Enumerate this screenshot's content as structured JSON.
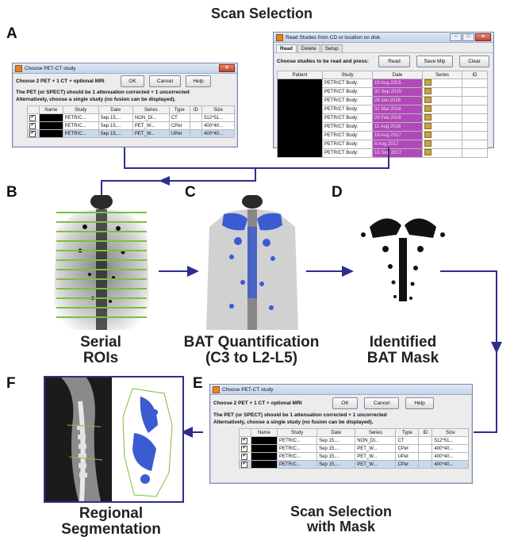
{
  "title": "Scan Selection",
  "labels": {
    "a": "A",
    "b": "B",
    "c": "C",
    "d": "D",
    "e": "E",
    "f": "F"
  },
  "captions": {
    "serial": "Serial\nROIs",
    "bat": "BAT Quantification\n(C3 to L2-L5)",
    "mask": "Identified\nBAT Mask",
    "seg": "Regional\nSegmentation",
    "scan_mask": "Scan Selection\nwith Mask"
  },
  "colors": {
    "arrow": "#2e2e8e",
    "roi": "#7ec03a",
    "bat": "#3a5bd1",
    "pink": "#b149b8"
  },
  "win_a": {
    "title": "Choose PET-CT study",
    "instruction": "Choose 2 PET + 1 CT + optional MRI",
    "ok": "OK",
    "cancel": "Cancel",
    "help": "Help",
    "line1": "The PET (or SPECT) should be 1 attenuation corrected + 1 uncorrected",
    "line2": "Alternatively, choose a single study (no fusion can be displayed).",
    "headers": [
      "Name",
      "Study",
      "Date",
      "Series",
      "Type",
      "ID",
      "Size"
    ],
    "rows": [
      {
        "study": "PETR/C...",
        "date": "Sep 15,...",
        "series": "NON_DI...",
        "type": "CT",
        "id": "",
        "size": "512*51..."
      },
      {
        "study": "PETR/C...",
        "date": "Sep 15,...",
        "series": "PET_W...",
        "type": "CPet",
        "id": "",
        "size": "400*40..."
      },
      {
        "study": "PETR/C...",
        "date": "Sep 15,...",
        "series": "PET_W...",
        "type": "UPet",
        "id": "",
        "size": "400*40..."
      }
    ]
  },
  "win_read": {
    "title": "Read Studies from CD or location on disk",
    "tabs": [
      "Read",
      "Delete",
      "Setup"
    ],
    "instruction": "Choose studies to be read and press:",
    "read": "Read",
    "save_mip": "Save Mip",
    "clear": "Clear",
    "headers": [
      "Patient",
      "Study",
      "Date",
      "Series",
      "ID"
    ],
    "rows": [
      {
        "study": "PETR/CT Body:",
        "date": "19 Aug 2015"
      },
      {
        "study": "PETR/CT Body:",
        "date": "30 Sep 2015"
      },
      {
        "study": "PETR/CT Body:",
        "date": "28 Jan 2016"
      },
      {
        "study": "PETR/CT Body:",
        "date": "31 Mar 2016"
      },
      {
        "study": "PETR/CT Body:",
        "date": "29 Feb 2016"
      },
      {
        "study": "PETR/CT Body:",
        "date": "11 Aug 2016"
      },
      {
        "study": "PETR/CT Body:",
        "date": "18 Aug 2017"
      },
      {
        "study": "PETR/CT Body:",
        "date": "8 Aug 2017"
      },
      {
        "study": "PETR/CT Body:",
        "date": "15 Sep 2017"
      }
    ]
  },
  "win_e": {
    "title": "Choose PET-CT study",
    "instruction": "Choose 2 PET + 1 CT + optional MRI",
    "ok": "OK",
    "cancel": "Cancel",
    "help": "Help",
    "line1": "The PET (or SPECT) should be 1 attenuation corrected + 1 uncorrected",
    "line2": "Alternatively, choose a single study (no fusion can be displayed).",
    "headers": [
      "Name",
      "Study",
      "Date",
      "Series",
      "Type",
      "ID",
      "Size"
    ],
    "rows": [
      {
        "study": "PETR/C...",
        "date": "Sep 15,...",
        "series": "NON_DI...",
        "type": "CT",
        "id": "",
        "size": "512*51..."
      },
      {
        "study": "PETR/C...",
        "date": "Sep 15,...",
        "series": "PET_W...",
        "type": "CPet",
        "id": "",
        "size": "400*40..."
      },
      {
        "study": "PETR/C...",
        "date": "Sep 15,...",
        "series": "PET_W...",
        "type": "UPet",
        "id": "",
        "size": "400*40..."
      },
      {
        "study": "PETR/C...",
        "date": "Sep 15,...",
        "series": "PET_W...",
        "type": "CPet",
        "id": "",
        "size": "400*40..."
      }
    ]
  }
}
